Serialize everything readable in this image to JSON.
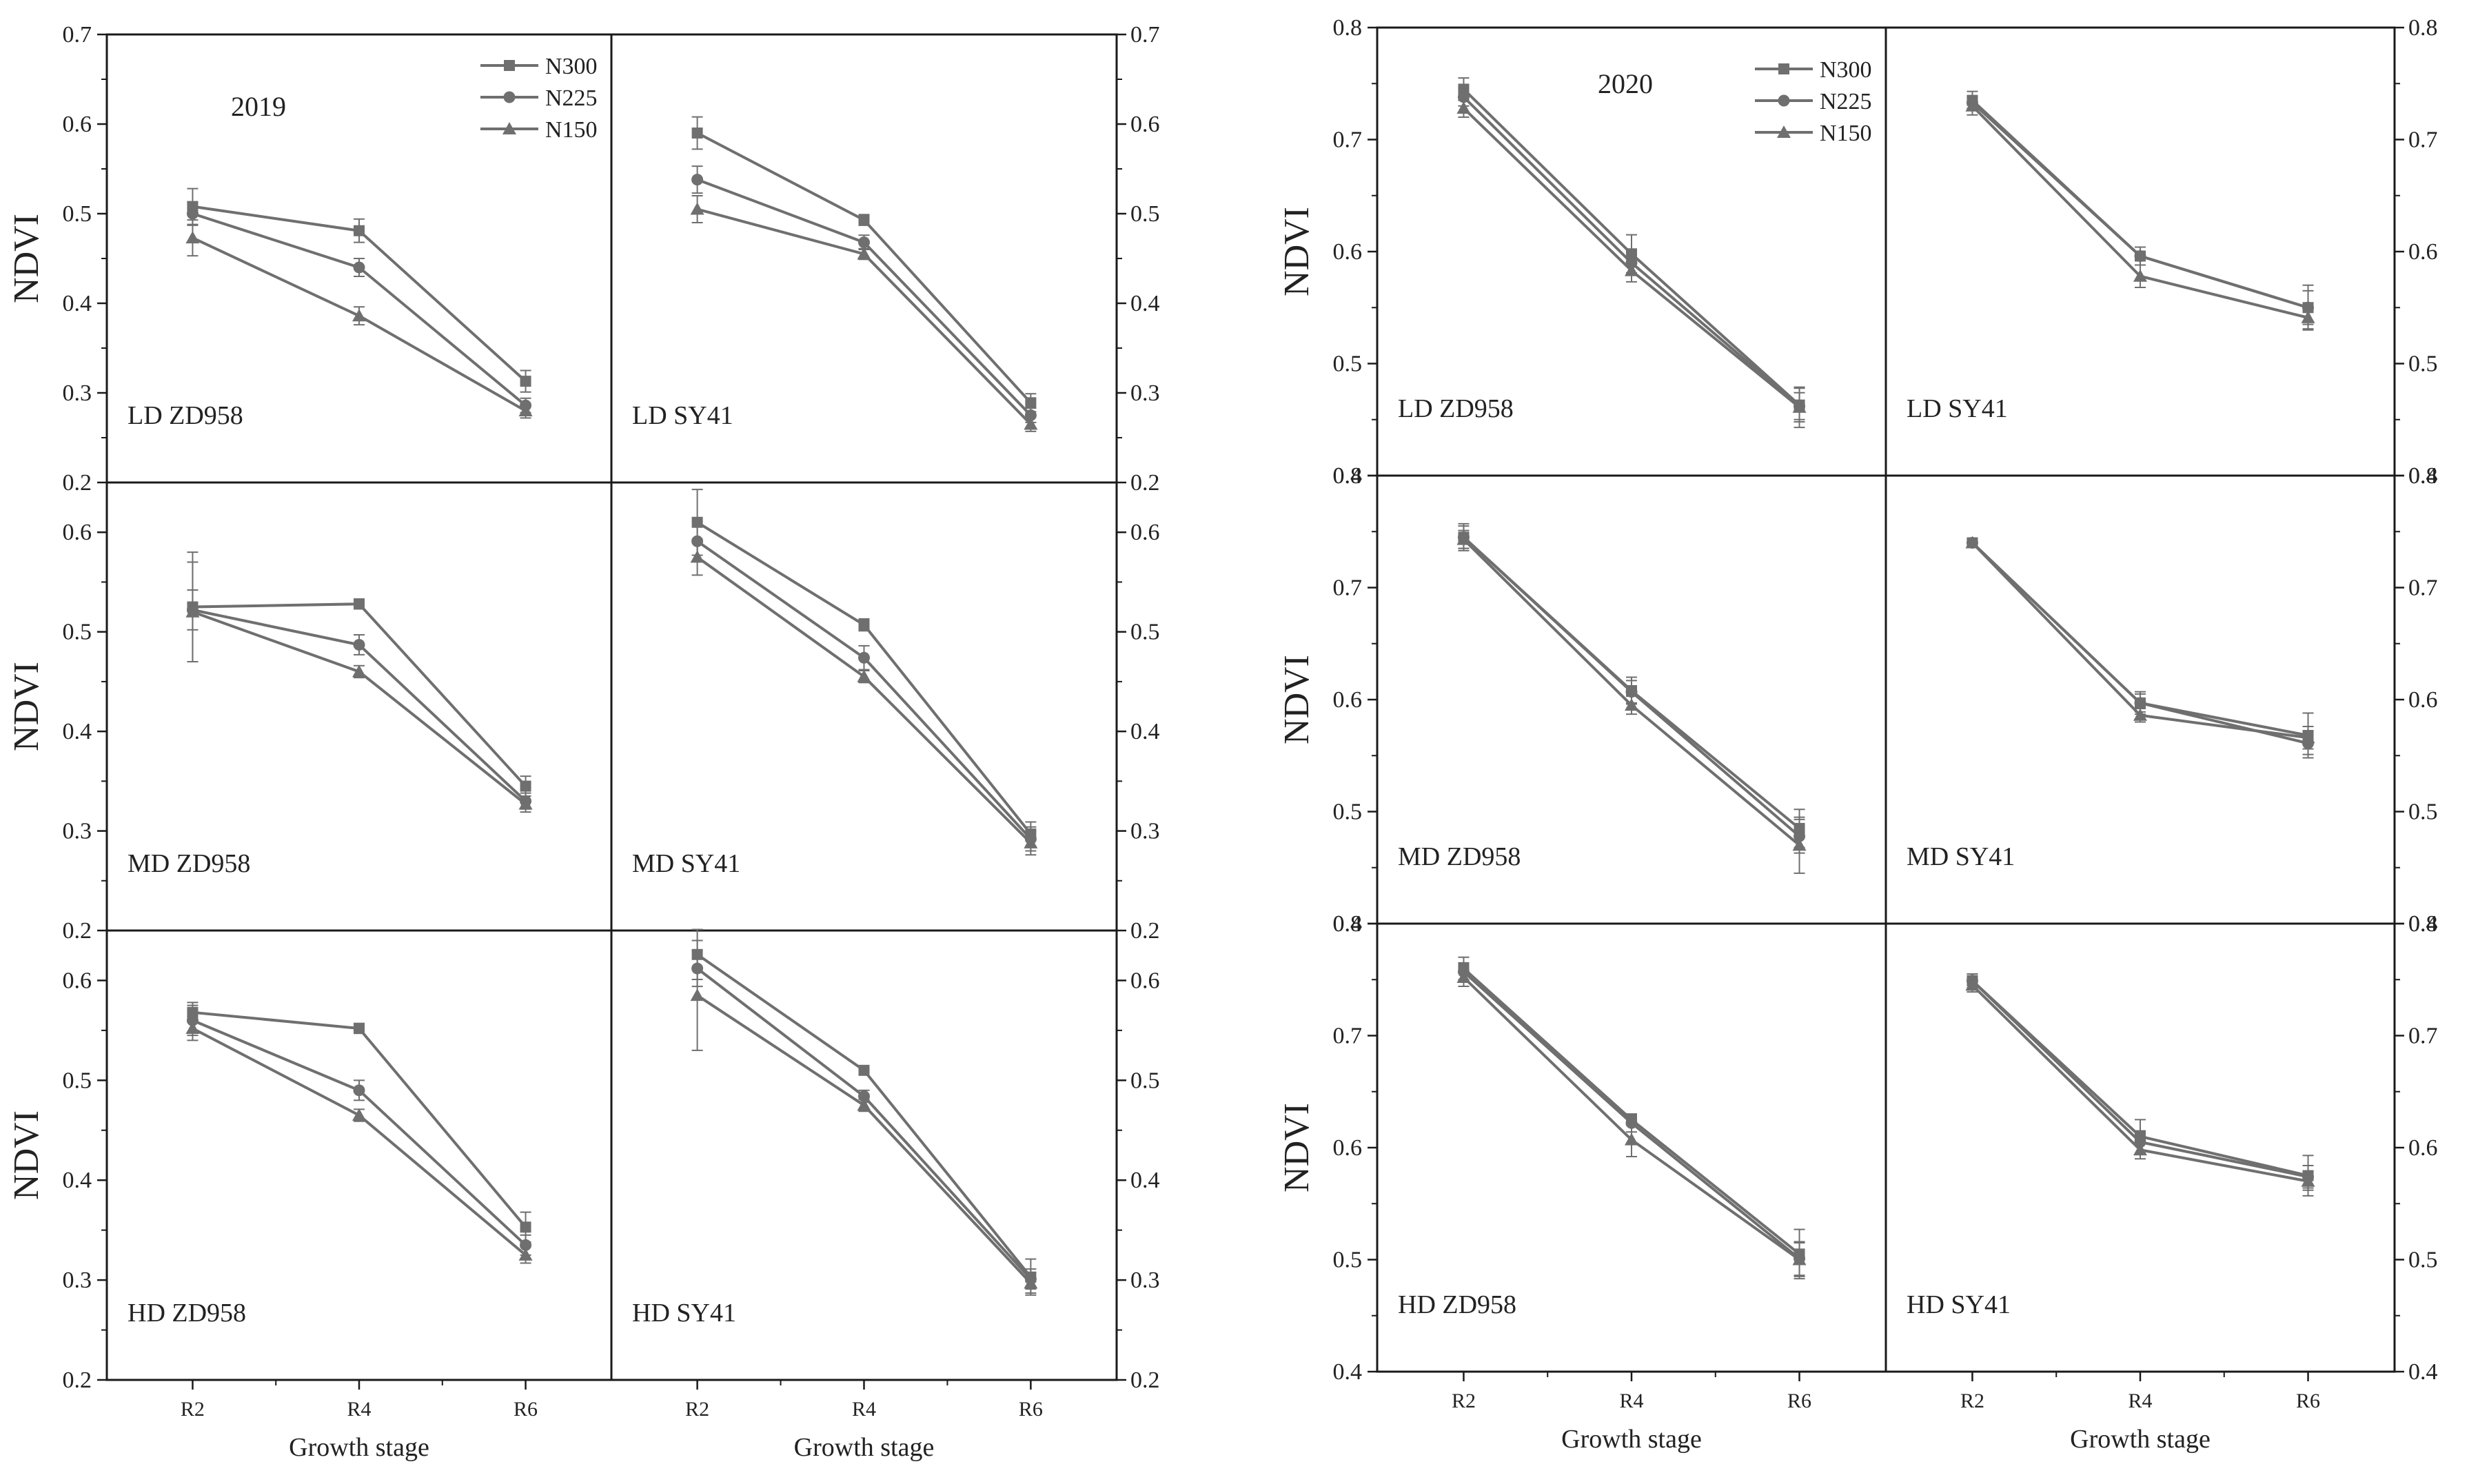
{
  "colors": {
    "series": "#6f6f6f",
    "axis": "#1a1a1a",
    "text": "#222222"
  },
  "figures": [
    {
      "year_label": "2019",
      "ylabel": "NDVI",
      "xlabel": "Growth stage",
      "legend": [
        "N300",
        "N225",
        "N150"
      ],
      "y_ticks_left": [
        [
          "0.2",
          "0.3",
          "0.4",
          "0.5",
          "0.6",
          "0.7"
        ],
        [
          "0.2",
          "0.3",
          "0.4",
          "0.5",
          "0.6"
        ],
        [
          "0.2",
          "0.3",
          "0.4",
          "0.5",
          "0.6"
        ]
      ],
      "y_ticks_right": [
        [
          "0.2",
          "0.3",
          "0.4",
          "0.5",
          "0.6",
          "0.7"
        ],
        [
          "0.2",
          "0.3",
          "0.4",
          "0.5",
          "0.6"
        ],
        [
          "0.2",
          "0.3",
          "0.4",
          "0.5",
          "0.6"
        ]
      ]
    },
    {
      "year_label": "2020",
      "ylabel": "NDVI",
      "xlabel": "Growth stage",
      "legend": [
        "N300",
        "N225",
        "N150"
      ],
      "y_ticks_left": [
        [
          "0.4",
          "0.5",
          "0.6",
          "0.7",
          "0.8"
        ],
        [
          "0.4",
          "0.5",
          "0.6",
          "0.7",
          "0.8"
        ],
        [
          "0.4",
          "0.5",
          "0.6",
          "0.7",
          "0.8"
        ]
      ],
      "y_ticks_right": [
        [
          "0.4",
          "0.5",
          "0.6",
          "0.7",
          "0.8"
        ],
        [
          "0.4",
          "0.5",
          "0.6",
          "0.7",
          "0.8"
        ],
        [
          "0.4",
          "0.5",
          "0.6",
          "0.7",
          "0.8"
        ]
      ]
    }
  ],
  "chart_data": [
    {
      "type": "line",
      "year": "2019",
      "categories": [
        "R2",
        "R4",
        "R6"
      ],
      "series_names": [
        "N300",
        "N225",
        "N150"
      ],
      "panels": [
        {
          "label": "LD ZD958",
          "ylim": [
            0.2,
            0.7
          ],
          "series": [
            {
              "name": "N300",
              "values": [
                0.508,
                0.481,
                0.313
              ],
              "err": [
                0.02,
                0.013,
                0.012
              ]
            },
            {
              "name": "N225",
              "values": [
                0.5,
                0.44,
                0.286
              ],
              "err": [
                0.013,
                0.01,
                0.008
              ]
            },
            {
              "name": "N150",
              "values": [
                0.473,
                0.386,
                0.28
              ],
              "err": [
                0.02,
                0.01,
                0.008
              ]
            }
          ]
        },
        {
          "label": "LD SY41",
          "ylim": [
            0.2,
            0.7
          ],
          "series": [
            {
              "name": "N300",
              "values": [
                0.59,
                0.493,
                0.289
              ],
              "err": [
                0.018,
                0.006,
                0.01
              ]
            },
            {
              "name": "N225",
              "values": [
                0.538,
                0.468,
                0.275
              ],
              "err": [
                0.015,
                0.008,
                0.008
              ]
            },
            {
              "name": "N150",
              "values": [
                0.505,
                0.455,
                0.265
              ],
              "err": [
                0.015,
                0.006,
                0.008
              ]
            }
          ]
        },
        {
          "label": "MD ZD958",
          "ylim": [
            0.2,
            0.65
          ],
          "series": [
            {
              "name": "N300",
              "values": [
                0.525,
                0.528,
                0.345
              ],
              "err": [
                0.055,
                0.005,
                0.01
              ]
            },
            {
              "name": "N225",
              "values": [
                0.522,
                0.487,
                0.33
              ],
              "err": [
                0.02,
                0.01,
                0.008
              ]
            },
            {
              "name": "N150",
              "values": [
                0.52,
                0.46,
                0.327
              ],
              "err": [
                0.05,
                0.006,
                0.008
              ]
            }
          ]
        },
        {
          "label": "MD SY41",
          "ylim": [
            0.2,
            0.65
          ],
          "series": [
            {
              "name": "N300",
              "values": [
                0.61,
                0.507,
                0.297
              ],
              "err": [
                0.033,
                0.006,
                0.012
              ]
            },
            {
              "name": "N225",
              "values": [
                0.591,
                0.474,
                0.292
              ],
              "err": [
                0.02,
                0.012,
                0.012
              ]
            },
            {
              "name": "N150",
              "values": [
                0.575,
                0.455,
                0.288
              ],
              "err": [
                0.018,
                0.006,
                0.012
              ]
            }
          ]
        },
        {
          "label": "HD ZD958",
          "ylim": [
            0.2,
            0.65
          ],
          "series": [
            {
              "name": "N300",
              "values": [
                0.568,
                0.552,
                0.353
              ],
              "err": [
                0.01,
                0.005,
                0.015
              ]
            },
            {
              "name": "N225",
              "values": [
                0.56,
                0.49,
                0.335
              ],
              "err": [
                0.015,
                0.01,
                0.01
              ]
            },
            {
              "name": "N150",
              "values": [
                0.552,
                0.465,
                0.325
              ],
              "err": [
                0.012,
                0.006,
                0.008
              ]
            }
          ]
        },
        {
          "label": "HD SY41",
          "ylim": [
            0.2,
            0.65
          ],
          "series": [
            {
              "name": "N300",
              "values": [
                0.626,
                0.51,
                0.303
              ],
              "err": [
                0.025,
                0.004,
                0.018
              ]
            },
            {
              "name": "N225",
              "values": [
                0.612,
                0.484,
                0.301
              ],
              "err": [
                0.018,
                0.006,
                0.01
              ]
            },
            {
              "name": "N150",
              "values": [
                0.585,
                0.475,
                0.297
              ],
              "err": [
                0.055,
                0.006,
                0.01
              ]
            }
          ]
        }
      ]
    },
    {
      "type": "line",
      "year": "2020",
      "categories": [
        "R2",
        "R4",
        "R6"
      ],
      "series_names": [
        "N300",
        "N225",
        "N150"
      ],
      "panels": [
        {
          "label": "LD ZD958",
          "ylim": [
            0.4,
            0.8
          ],
          "series": [
            {
              "name": "N300",
              "values": [
                0.745,
                0.598,
                0.463
              ],
              "err": [
                0.01,
                0.017,
                0.015
              ]
            },
            {
              "name": "N225",
              "values": [
                0.738,
                0.59,
                0.462
              ],
              "err": [
                0.008,
                0.01,
                0.012
              ]
            },
            {
              "name": "N150",
              "values": [
                0.728,
                0.583,
                0.461
              ],
              "err": [
                0.008,
                0.01,
                0.018
              ]
            }
          ]
        },
        {
          "label": "LD SY41",
          "ylim": [
            0.4,
            0.8
          ],
          "series": [
            {
              "name": "N300",
              "values": [
                0.735,
                0.596,
                0.55
              ],
              "err": [
                0.008,
                0.008,
                0.02
              ]
            },
            {
              "name": "N225",
              "values": [
                0.733,
                0.596,
                0.55
              ],
              "err": [
                0.005,
                0.008,
                0.015
              ]
            },
            {
              "name": "N150",
              "values": [
                0.73,
                0.578,
                0.541
              ],
              "err": [
                0.008,
                0.01,
                0.01
              ]
            }
          ]
        },
        {
          "label": "MD ZD958",
          "ylim": [
            0.4,
            0.8
          ],
          "series": [
            {
              "name": "N300",
              "values": [
                0.745,
                0.608,
                0.485
              ],
              "err": [
                0.012,
                0.012,
                0.017
              ]
            },
            {
              "name": "N225",
              "values": [
                0.745,
                0.607,
                0.478
              ],
              "err": [
                0.01,
                0.01,
                0.015
              ]
            },
            {
              "name": "N150",
              "values": [
                0.743,
                0.595,
                0.47
              ],
              "err": [
                0.008,
                0.008,
                0.025
              ]
            }
          ]
        },
        {
          "label": "MD SY41",
          "ylim": [
            0.4,
            0.8
          ],
          "series": [
            {
              "name": "N300",
              "values": [
                0.74,
                0.597,
                0.568
              ],
              "err": [
                0.003,
                0.01,
                0.02
              ]
            },
            {
              "name": "N225",
              "values": [
                0.74,
                0.597,
                0.561
              ],
              "err": [
                0.003,
                0.008,
                0.01
              ]
            },
            {
              "name": "N150",
              "values": [
                0.74,
                0.586,
                0.566
              ],
              "err": [
                0.003,
                0.006,
                0.01
              ]
            }
          ]
        },
        {
          "label": "HD ZD958",
          "ylim": [
            0.4,
            0.8
          ],
          "series": [
            {
              "name": "N300",
              "values": [
                0.76,
                0.625,
                0.505
              ],
              "err": [
                0.01,
                0.005,
                0.022
              ]
            },
            {
              "name": "N225",
              "values": [
                0.757,
                0.622,
                0.501
              ],
              "err": [
                0.008,
                0.008,
                0.015
              ]
            },
            {
              "name": "N150",
              "values": [
                0.752,
                0.607,
                0.5
              ],
              "err": [
                0.008,
                0.015,
                0.015
              ]
            }
          ]
        },
        {
          "label": "HD SY41",
          "ylim": [
            0.4,
            0.8
          ],
          "series": [
            {
              "name": "N300",
              "values": [
                0.749,
                0.61,
                0.575
              ],
              "err": [
                0.006,
                0.015,
                0.018
              ]
            },
            {
              "name": "N225",
              "values": [
                0.749,
                0.605,
                0.574
              ],
              "err": [
                0.006,
                0.01,
                0.01
              ]
            },
            {
              "name": "N150",
              "values": [
                0.745,
                0.598,
                0.57
              ],
              "err": [
                0.006,
                0.008,
                0.008
              ]
            }
          ]
        }
      ]
    }
  ]
}
